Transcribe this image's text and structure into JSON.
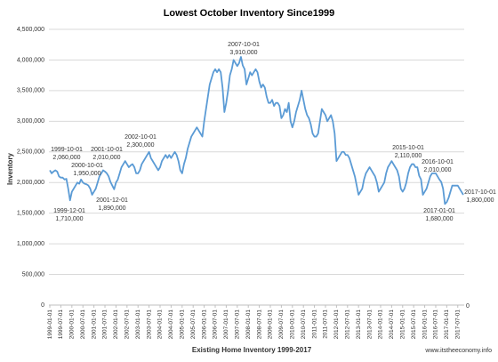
{
  "chart_data": {
    "type": "line",
    "title": "Lowest October Inventory Since1999",
    "y_label": "Inventory",
    "x_label": "Existing Home Inventory 1999-2017",
    "source": "www.itstheeconomy.info",
    "corner_label": "0",
    "color": "#5b9bd5",
    "grid": true,
    "ylim": [
      0,
      4500000
    ],
    "yticks": [
      0,
      {
        "value": 500000,
        "label": "500,000"
      },
      {
        "value": 1000000,
        "label": "1,000,000"
      },
      {
        "value": 1500000,
        "label": "1,500,000"
      },
      {
        "value": 2000000,
        "label": "2,000,000"
      },
      {
        "value": 2500000,
        "label": "2,500,000"
      },
      {
        "value": 3000000,
        "label": "3,000,000"
      },
      {
        "value": 3500000,
        "label": "3,500,000"
      },
      {
        "value": 4000000,
        "label": "4,000,000"
      },
      {
        "value": 4500000,
        "label": "4,500,000"
      }
    ],
    "categories": [
      "1999-01-01",
      null,
      null,
      null,
      null,
      null,
      "1999-07-01",
      null,
      null,
      null,
      null,
      null,
      "2000-01-01",
      null,
      null,
      null,
      null,
      null,
      "2000-07-01",
      null,
      null,
      null,
      null,
      null,
      "2001-01-01",
      null,
      null,
      null,
      null,
      null,
      "2001-07-01",
      null,
      null,
      null,
      null,
      null,
      "2002-01-01",
      null,
      null,
      null,
      null,
      null,
      "2002-07-01",
      null,
      null,
      null,
      null,
      null,
      "2003-01-01",
      null,
      null,
      null,
      null,
      null,
      "2003-07-01",
      null,
      null,
      null,
      null,
      null,
      "2004-01-01",
      null,
      null,
      null,
      null,
      null,
      "2004-07-01",
      null,
      null,
      null,
      null,
      null,
      "2005-01-01",
      null,
      null,
      null,
      null,
      null,
      "2005-07-01",
      null,
      null,
      null,
      null,
      null,
      "2006-01-01",
      null,
      null,
      null,
      null,
      null,
      "2006-07-01",
      null,
      null,
      null,
      null,
      null,
      "2007-01-01",
      null,
      null,
      null,
      null,
      null,
      "2007-07-01",
      null,
      null,
      null,
      null,
      null,
      "2008-01-01",
      null,
      null,
      null,
      null,
      null,
      "2008-07-01",
      null,
      null,
      null,
      null,
      null,
      "2009-01-01",
      null,
      null,
      null,
      null,
      null,
      "2009-07-01",
      null,
      null,
      null,
      null,
      null,
      "2010-01-01",
      null,
      null,
      null,
      null,
      null,
      "2010-07-01",
      null,
      null,
      null,
      null,
      null,
      "2011-01-01",
      null,
      null,
      null,
      null,
      null,
      "2011-07-01",
      null,
      null,
      null,
      null,
      null,
      "2012-01-01",
      null,
      null,
      null,
      null,
      null,
      "2012-07-01",
      null,
      null,
      null,
      null,
      null,
      "2013-01-01",
      null,
      null,
      null,
      null,
      null,
      "2013-07-01",
      null,
      null,
      null,
      null,
      null,
      "2014-01-01",
      null,
      null,
      null,
      null,
      null,
      "2014-07-01",
      null,
      null,
      null,
      null,
      null,
      "2015-01-01",
      null,
      null,
      null,
      null,
      null,
      "2015-07-01",
      null,
      null,
      null,
      null,
      null,
      "2016-01-01",
      null,
      null,
      null,
      null,
      null,
      "2016-07-01",
      null,
      null,
      null,
      null,
      null,
      "2017-01-01",
      null,
      null,
      null,
      null,
      null,
      "2017-07-01",
      null,
      null,
      null
    ],
    "values": [
      2200000,
      2150000,
      2180000,
      2200000,
      2180000,
      2100000,
      2080000,
      2080000,
      2050000,
      2060000,
      1900000,
      1710000,
      1850000,
      1900000,
      1950000,
      2000000,
      1980000,
      2050000,
      2000000,
      1980000,
      1970000,
      1950000,
      1900000,
      1800000,
      1850000,
      1900000,
      2000000,
      2100000,
      2150000,
      2200000,
      2180000,
      2150000,
      2100000,
      2010000,
      1950000,
      1890000,
      2000000,
      2050000,
      2150000,
      2250000,
      2300000,
      2350000,
      2300000,
      2250000,
      2280000,
      2300000,
      2250000,
      2150000,
      2150000,
      2200000,
      2300000,
      2350000,
      2400000,
      2450000,
      2500000,
      2400000,
      2350000,
      2300000,
      2250000,
      2200000,
      2250000,
      2350000,
      2400000,
      2450000,
      2400000,
      2450000,
      2400000,
      2450000,
      2500000,
      2450000,
      2350000,
      2200000,
      2150000,
      2300000,
      2400000,
      2550000,
      2650000,
      2750000,
      2800000,
      2850000,
      2900000,
      2850000,
      2800000,
      2750000,
      3000000,
      3200000,
      3400000,
      3600000,
      3700000,
      3800000,
      3850000,
      3800000,
      3850000,
      3800000,
      3550000,
      3150000,
      3300000,
      3500000,
      3750000,
      3850000,
      4000000,
      3950000,
      3900000,
      3950000,
      4050000,
      3910000,
      3850000,
      3600000,
      3700000,
      3800000,
      3750000,
      3800000,
      3850000,
      3800000,
      3650000,
      3550000,
      3600000,
      3550000,
      3400000,
      3300000,
      3300000,
      3350000,
      3250000,
      3300000,
      3300000,
      3250000,
      3050000,
      3100000,
      3200000,
      3150000,
      3300000,
      3000000,
      2900000,
      3000000,
      3150000,
      3250000,
      3350000,
      3500000,
      3350000,
      3200000,
      3100000,
      3050000,
      2950000,
      2800000,
      2750000,
      2750000,
      2800000,
      3000000,
      3200000,
      3150000,
      3100000,
      3000000,
      3050000,
      3100000,
      3000000,
      2800000,
      2350000,
      2400000,
      2450000,
      2500000,
      2500000,
      2450000,
      2450000,
      2400000,
      2300000,
      2200000,
      2100000,
      1950000,
      1800000,
      1850000,
      1900000,
      2050000,
      2150000,
      2200000,
      2250000,
      2200000,
      2150000,
      2100000,
      2000000,
      1850000,
      1900000,
      1950000,
      2000000,
      2150000,
      2250000,
      2300000,
      2350000,
      2300000,
      2250000,
      2200000,
      2100000,
      1900000,
      1850000,
      1900000,
      2000000,
      2150000,
      2250000,
      2300000,
      2300000,
      2250000,
      2250000,
      2110000,
      2050000,
      1800000,
      1850000,
      1900000,
      2000000,
      2100000,
      2150000,
      2150000,
      2150000,
      2100000,
      2050000,
      2010000,
      1900000,
      1650000,
      1680000,
      1750000,
      1850000,
      1950000,
      1950000,
      1950000,
      1950000,
      1900000,
      1850000,
      1800000
    ],
    "annotations": [
      {
        "date": "1999-10-01",
        "value": "2,060,000"
      },
      {
        "date": "2000-10-01",
        "value": "1,950,000"
      },
      {
        "date": "1999-12-01",
        "value": "1,710,000"
      },
      {
        "date": "2001-10-01",
        "value": "2,010,000"
      },
      {
        "date": "2001-12-01",
        "value": "1,890,000"
      },
      {
        "date": "2002-10-01",
        "value": "2,300,000"
      },
      {
        "date": "2007-10-01",
        "value": "3,910,000"
      },
      {
        "date": "2015-10-01",
        "value": "2,110,000"
      },
      {
        "date": "2016-10-01",
        "value": "2,010,000"
      },
      {
        "date": "2017-01-01",
        "value": "1,680,000"
      },
      {
        "date": "2017-10-01",
        "value": "1,800,000"
      }
    ]
  }
}
